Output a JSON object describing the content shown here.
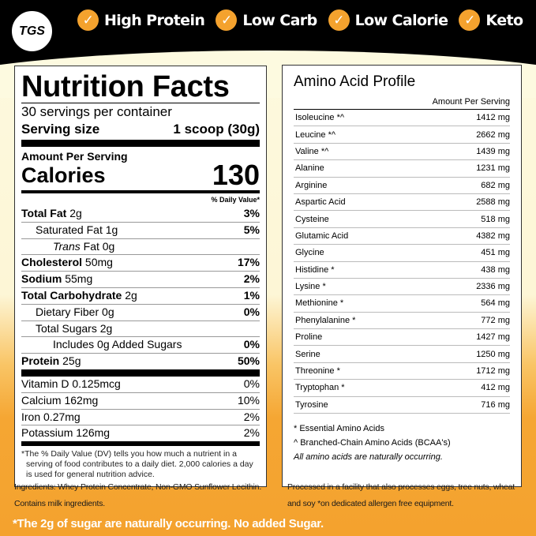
{
  "logo": "TGS",
  "badges": [
    "High Protein",
    "Low Carb",
    "Low Calorie",
    "Keto"
  ],
  "colors": {
    "accent": "#f4a22e",
    "header": "#000000",
    "cream": "#fdfae0"
  },
  "nutrition": {
    "title": "Nutrition Facts",
    "servings": "30 servings per container",
    "serving_label": "Serving size",
    "serving_value": "1 scoop (30g)",
    "amount_per_serving": "Amount Per Serving",
    "calories_label": "Calories",
    "calories_value": "130",
    "dv_header": "% Daily Value*",
    "rows": [
      {
        "label": "Total Fat",
        "amount": "2g",
        "dv": "3%",
        "bold": true,
        "indent": 0
      },
      {
        "label": "Saturated Fat",
        "amount": "1g",
        "dv": "5%",
        "bold": false,
        "indent": 1
      },
      {
        "label": "Trans",
        "amount": "Fat 0g",
        "dv": "",
        "bold": false,
        "indent": 2
      },
      {
        "label": "Cholesterol",
        "amount": "50mg",
        "dv": "17%",
        "bold": true,
        "indent": 0
      },
      {
        "label": "Sodium",
        "amount": "55mg",
        "dv": "2%",
        "bold": true,
        "indent": 0
      },
      {
        "label": "Total Carbohydrate",
        "amount": "2g",
        "dv": "1%",
        "bold": true,
        "indent": 0
      },
      {
        "label": "Dietary Fiber",
        "amount": "0g",
        "dv": "0%",
        "bold": false,
        "indent": 1
      },
      {
        "label": "Total Sugars",
        "amount": "2g",
        "dv": "",
        "bold": false,
        "indent": 1
      },
      {
        "label": "Includes 0g Added Sugars",
        "amount": "",
        "dv": "0%",
        "bold": false,
        "indent": 2
      },
      {
        "label": "Protein",
        "amount": "25g",
        "dv": "50%",
        "bold": true,
        "indent": 0
      }
    ],
    "vitamins": [
      {
        "label": "Vitamin D 0.125mcg",
        "dv": "0%"
      },
      {
        "label": "Calcium 162mg",
        "dv": "10%"
      },
      {
        "label": "Iron 0.27mg",
        "dv": "2%"
      },
      {
        "label": "Potassium 126mg",
        "dv": "2%"
      }
    ],
    "footnote": "*The % Daily Value (DV) tells you how much a nutrient in a serving of food contributes to a daily diet. 2,000 calories a day is used for general nutrition advice."
  },
  "amino": {
    "title": "Amino Acid Profile",
    "column_header": "Amount Per Serving",
    "rows": [
      [
        "Isoleucine *^",
        "1412 mg"
      ],
      [
        "Leucine *^",
        "2662 mg"
      ],
      [
        "Valine *^",
        "1439 mg"
      ],
      [
        "Alanine",
        "1231 mg"
      ],
      [
        "Arginine",
        "682 mg"
      ],
      [
        "Aspartic Acid",
        "2588 mg"
      ],
      [
        "Cysteine",
        "518 mg"
      ],
      [
        "Glutamic Acid",
        "4382 mg"
      ],
      [
        "Glycine",
        "451 mg"
      ],
      [
        "Histidine *",
        "438 mg"
      ],
      [
        "Lysine *",
        "2336 mg"
      ],
      [
        "Methionine *",
        "564 mg"
      ],
      [
        "Phenylalanine *",
        "772 mg"
      ],
      [
        "Proline",
        "1427 mg"
      ],
      [
        "Serine",
        "1250 mg"
      ],
      [
        "Threonine *",
        "1712 mg"
      ],
      [
        "Tryptophan *",
        "412 mg"
      ],
      [
        "Tyrosine",
        "716 mg"
      ]
    ],
    "note1": "* Essential Amino Acids",
    "note2": "^ Branched-Chain Amino Acids (BCAA's)",
    "note3": "All amino acids are naturally occurring."
  },
  "ingredients": "Ingredients: Whey Protein Concentrate, Non-GMO Sunflower Lecithin. Contains milk ingredients.",
  "allergen": "Processed in a facility that also processes eggs, tree nuts, wheat and soy *on dedicated allergen free equipment.",
  "sugar_note": "*The 2g of sugar are naturally occurring. No added Sugar."
}
